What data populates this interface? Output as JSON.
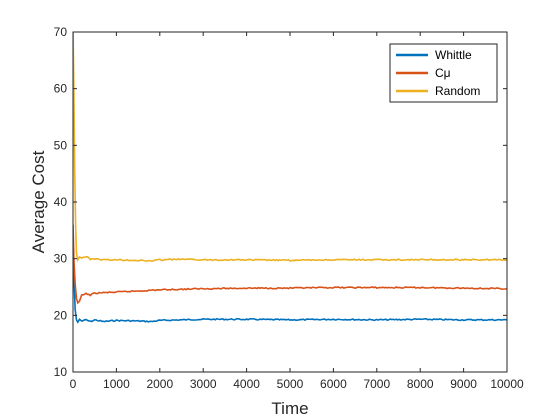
{
  "chart_data": {
    "type": "line",
    "title": "",
    "xlabel": "Time",
    "ylabel": "Average Cost",
    "xlim": [
      0,
      10000
    ],
    "ylim": [
      10,
      70
    ],
    "xticks": [
      0,
      1000,
      2000,
      3000,
      4000,
      5000,
      6000,
      7000,
      8000,
      9000,
      10000
    ],
    "yticks": [
      10,
      20,
      30,
      40,
      50,
      60,
      70
    ],
    "grid": false,
    "legend_position": "top-right",
    "series": [
      {
        "name": "Whittle",
        "color": "#0072BD",
        "x": [
          1,
          20,
          50,
          80,
          110,
          150,
          200,
          300,
          400,
          500,
          700,
          1000,
          1500,
          1800,
          2000,
          2500,
          3000,
          4000,
          5000,
          6000,
          7000,
          8000,
          9000,
          10000
        ],
        "y": [
          33,
          27,
          21,
          19.2,
          18.8,
          19.3,
          19.0,
          19.2,
          18.9,
          19.2,
          18.9,
          19.1,
          19.0,
          18.9,
          19.1,
          19.2,
          19.3,
          19.3,
          19.2,
          19.3,
          19.2,
          19.3,
          19.2,
          19.2
        ]
      },
      {
        "name": "Cμ",
        "color": "#D95319",
        "x": [
          1,
          20,
          50,
          80,
          110,
          150,
          200,
          300,
          400,
          500,
          700,
          1000,
          1500,
          2000,
          2500,
          3000,
          4000,
          5000,
          6000,
          7000,
          8000,
          9000,
          10000
        ],
        "y": [
          36,
          30,
          25.5,
          23,
          22.2,
          22.5,
          23.5,
          23.8,
          23.6,
          23.9,
          24.0,
          24.1,
          24.3,
          24.5,
          24.6,
          24.7,
          24.8,
          24.8,
          24.9,
          24.9,
          24.9,
          24.8,
          24.7
        ]
      },
      {
        "name": "Random",
        "color": "#EDB120",
        "x": [
          1,
          20,
          40,
          60,
          80,
          110,
          150,
          200,
          300,
          400,
          500,
          700,
          1000,
          1500,
          1800,
          2000,
          2500,
          3000,
          4000,
          5000,
          6000,
          7000,
          8000,
          9000,
          10000
        ],
        "y": [
          70,
          60,
          45,
          36,
          31,
          29.8,
          30.3,
          30.1,
          30.4,
          29.9,
          30.0,
          29.8,
          29.8,
          29.7,
          29.6,
          29.8,
          29.9,
          29.8,
          29.8,
          29.7,
          29.8,
          29.8,
          29.8,
          29.8,
          29.8
        ]
      }
    ]
  }
}
